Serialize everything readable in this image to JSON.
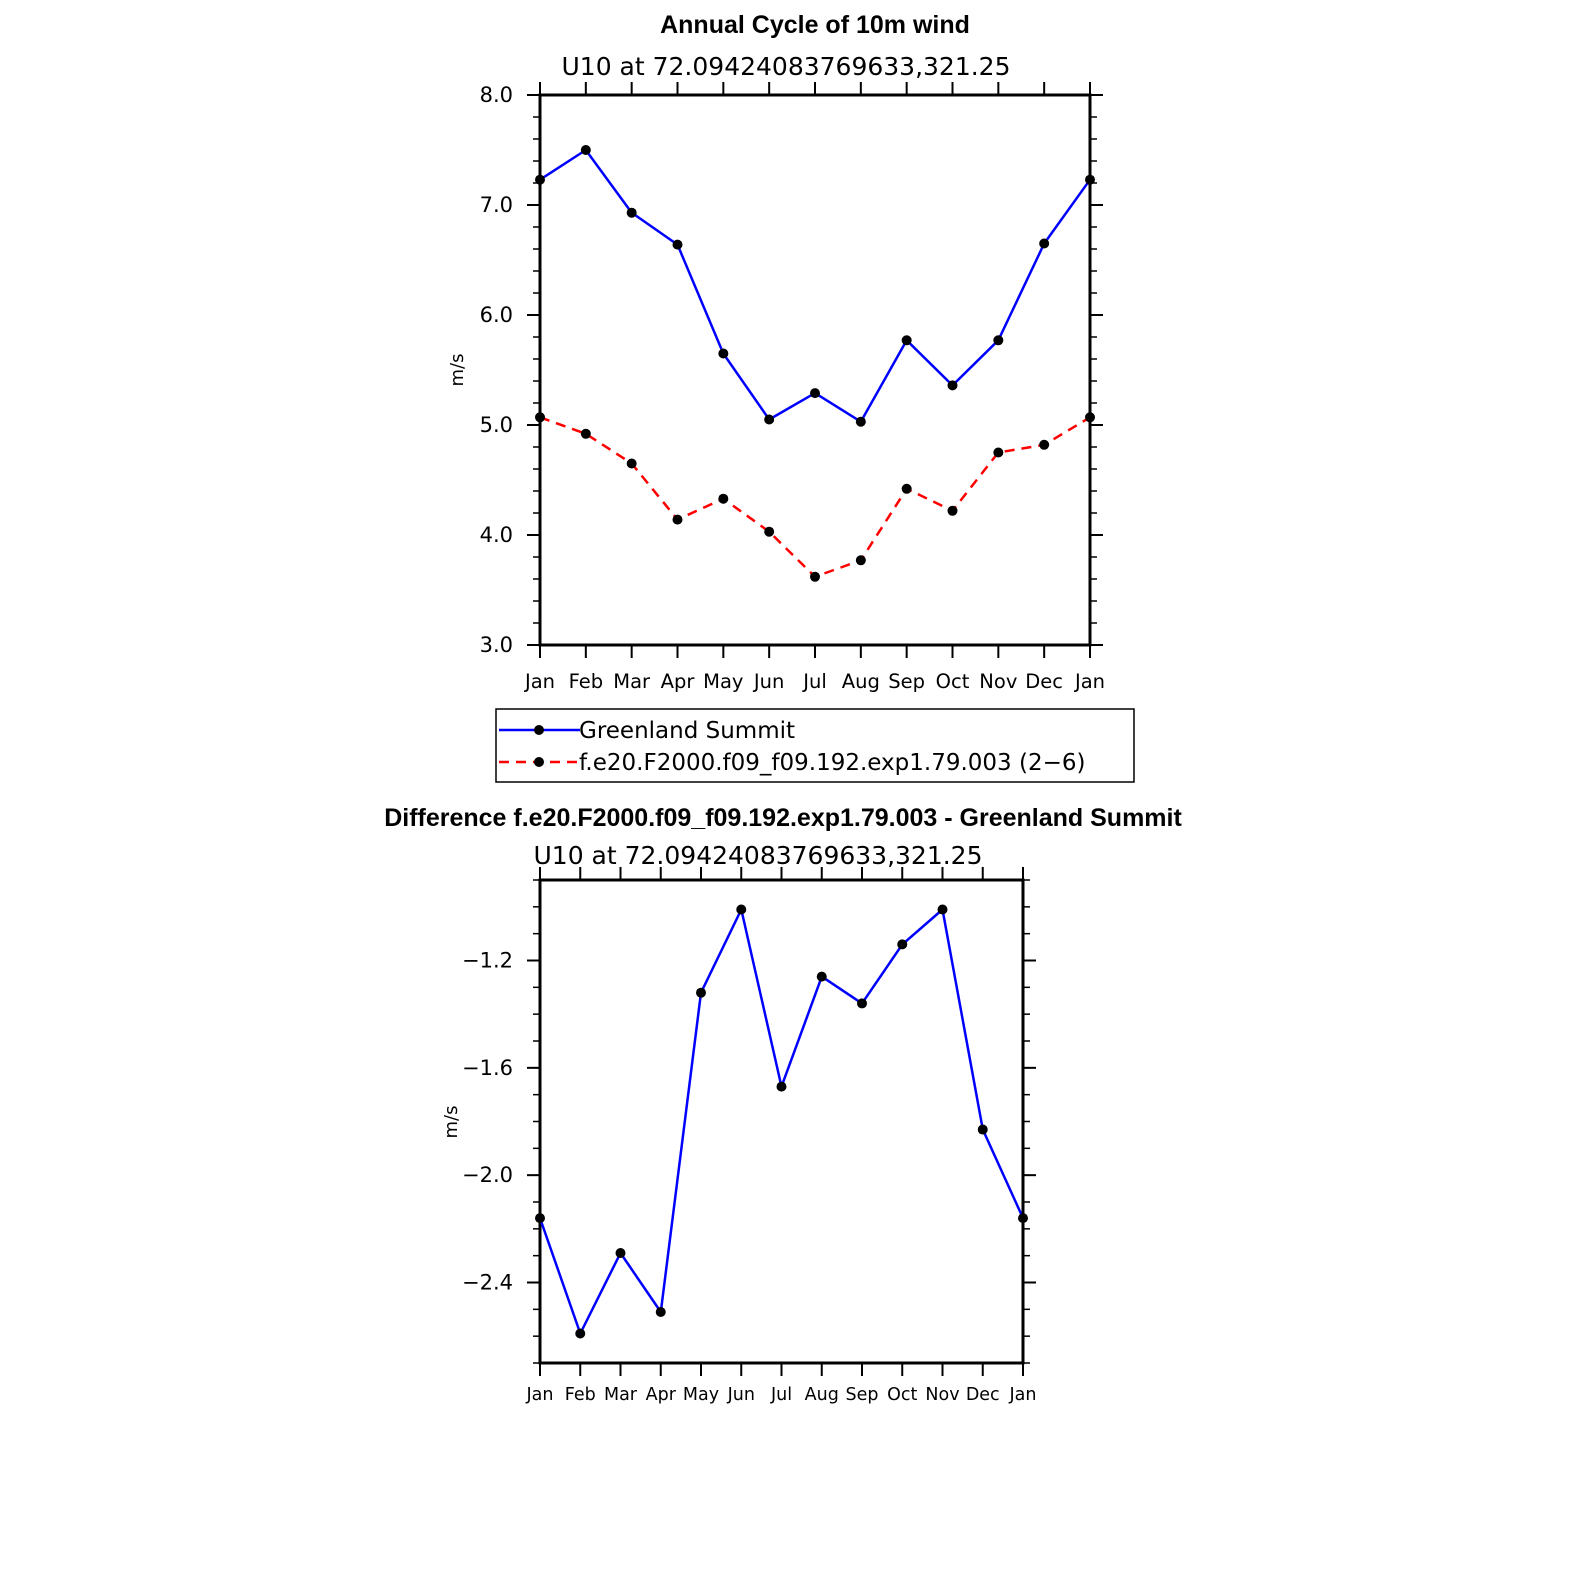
{
  "colors": {
    "series1": "#0000ff",
    "series2": "#ff0000",
    "marker": "#000000",
    "axis": "#000000"
  },
  "chart_data": [
    {
      "type": "line",
      "title": "Annual Cycle of 10m wind",
      "subtitle": "U10  at  72.09424083769633,321.25",
      "ylabel": "m/s",
      "ylim": [
        3.0,
        8.0
      ],
      "yticks": [
        "3.0",
        "4.0",
        "5.0",
        "6.0",
        "7.0",
        "8.0"
      ],
      "categories": [
        "Jan",
        "Feb",
        "Mar",
        "Apr",
        "May",
        "Jun",
        "Jul",
        "Aug",
        "Sep",
        "Oct",
        "Nov",
        "Dec",
        "Jan"
      ],
      "legend_position": "bottom",
      "series": [
        {
          "name": "Greenland Summit",
          "color": "#0000ff",
          "dash": "solid",
          "values": [
            7.23,
            7.5,
            6.93,
            6.64,
            5.65,
            5.05,
            5.29,
            5.03,
            5.77,
            5.36,
            5.77,
            6.65,
            7.23
          ]
        },
        {
          "name": "f.e20.F2000.f09_f09.192.exp1.79.003 (2−6)",
          "color": "#ff0000",
          "dash": "dashed",
          "values": [
            5.07,
            4.92,
            4.65,
            4.14,
            4.33,
            4.03,
            3.62,
            3.77,
            4.42,
            4.22,
            4.75,
            4.82,
            5.07
          ]
        }
      ]
    },
    {
      "type": "line",
      "title": "Difference f.e20.F2000.f09_f09.192.exp1.79.003 - Greenland Summit",
      "subtitle": "U10  at  72.09424083769633,321.25",
      "ylabel": "m/s",
      "ylim": [
        -2.7,
        -0.9
      ],
      "yticks": [
        "−2.4",
        "−2.0",
        "−1.6",
        "−1.2"
      ],
      "ytick_values": [
        -2.4,
        -2.0,
        -1.6,
        -1.2
      ],
      "categories": [
        "Jan",
        "Feb",
        "Mar",
        "Apr",
        "May",
        "Jun",
        "Jul",
        "Aug",
        "Sep",
        "Oct",
        "Nov",
        "Dec",
        "Jan"
      ],
      "series": [
        {
          "color": "#0000ff",
          "dash": "solid",
          "values": [
            -2.16,
            -2.59,
            -2.29,
            -2.51,
            -1.32,
            -1.01,
            -1.67,
            -1.26,
            -1.36,
            -1.14,
            -1.01,
            -1.83,
            -2.16
          ]
        }
      ]
    }
  ]
}
